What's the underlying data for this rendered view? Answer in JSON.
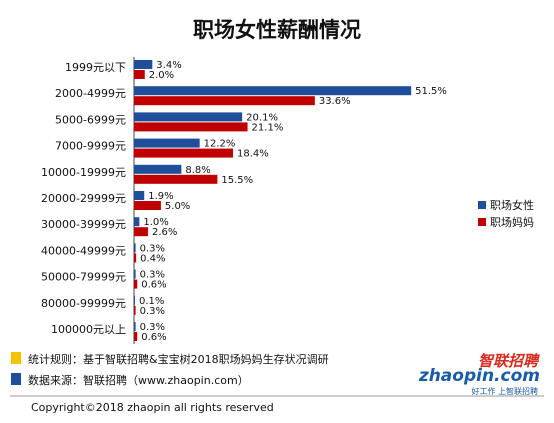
{
  "chart_data": {
    "type": "bar",
    "orientation": "horizontal",
    "title": "职场女性薪酬情况",
    "categories": [
      "1999元以下",
      "2000-4999元",
      "5000-6999元",
      "7000-9999元",
      "10000-19999元",
      "20000-29999元",
      "30000-39999元",
      "40000-49999元",
      "50000-79999元",
      "80000-99999元",
      "100000元以上"
    ],
    "series": [
      {
        "name": "职场女性",
        "color": "#1f4e9a",
        "values": [
          3.4,
          51.5,
          20.1,
          12.2,
          8.8,
          1.9,
          1.0,
          0.3,
          0.3,
          0.1,
          0.3
        ],
        "labels": [
          "3.4%",
          "51.5%",
          "20.1%",
          "12.2%",
          "8.8%",
          "1.9%",
          "1.0%",
          "0.3%",
          "0.3%",
          "0.1%",
          "0.3%"
        ]
      },
      {
        "name": "职场妈妈",
        "color": "#c00000",
        "values": [
          2.0,
          33.6,
          21.1,
          18.4,
          15.5,
          5.0,
          2.6,
          0.4,
          0.6,
          0.3,
          0.6
        ],
        "labels": [
          "2.0%",
          "33.6%",
          "21.1%",
          "18.4%",
          "15.5%",
          "5.0%",
          "2.6%",
          "0.4%",
          "0.6%",
          "0.3%",
          "0.6%"
        ]
      }
    ],
    "xlabel": "",
    "ylabel": "",
    "xlim": [
      0,
      55
    ],
    "grid": false,
    "legend_position": "right"
  },
  "notes": [
    {
      "text": "统计规则：基于智联招聘&宝宝树2018职场妈妈生存状况调研",
      "color": "#f5c400"
    },
    {
      "text": "数据来源：智联招聘（www.zhaopin.com）",
      "color": "#1f4e9a"
    }
  ],
  "brand": {
    "logo_text": "zhaopin.com",
    "cn_name": "智联招聘",
    "slogan": "好工作 上智联招聘"
  },
  "copyright": "Copyright©2018 zhaopin all rights reserved"
}
